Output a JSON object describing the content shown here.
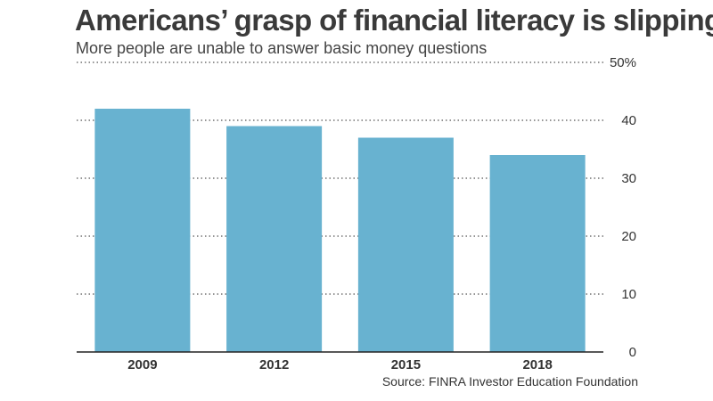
{
  "header": {
    "title": "Americans’ grasp of financial literacy is slipping",
    "subtitle": "More people are unable to answer basic money questions"
  },
  "footer": {
    "source": "Source: FINRA Investor Education Foundation"
  },
  "chart_data": {
    "type": "bar",
    "title": "Americans’ grasp of financial literacy is slipping",
    "subtitle": "More people are unable to answer basic money questions",
    "categories": [
      "2009",
      "2012",
      "2015",
      "2018"
    ],
    "values": [
      42,
      39,
      37,
      34
    ],
    "ylim": [
      0,
      50
    ],
    "yticks": [
      0,
      10,
      20,
      30,
      40,
      50
    ],
    "ytick_labels": [
      "0",
      "10",
      "20",
      "30",
      "40",
      "50%"
    ],
    "y_axis_position": "right",
    "grid": true,
    "bar_color": "#68b2d0",
    "xlabel": "",
    "ylabel": ""
  }
}
